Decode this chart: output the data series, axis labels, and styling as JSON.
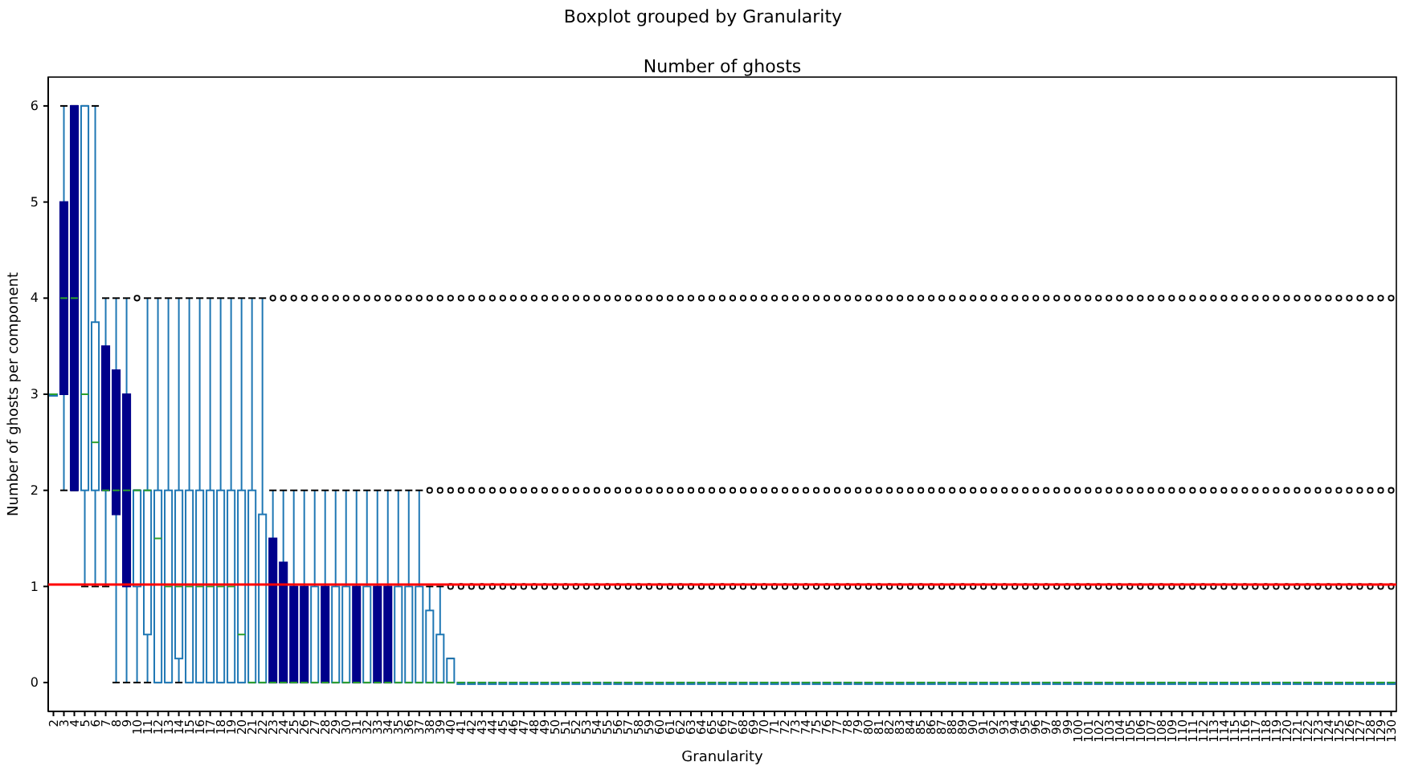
{
  "chart_data": {
    "type": "box",
    "title": "Boxplot grouped by Granularity",
    "subtitle": "Number of ghosts",
    "xlabel": "Granularity",
    "ylabel": "Number of ghosts per component",
    "categories": [
      "2",
      "3",
      "4",
      "5",
      "6",
      "7",
      "8",
      "9",
      "10",
      "11",
      "12",
      "13",
      "14",
      "15",
      "16",
      "17",
      "18",
      "19",
      "20",
      "21",
      "22",
      "23",
      "24",
      "25",
      "26",
      "27",
      "28",
      "29",
      "30",
      "31",
      "32",
      "33",
      "34",
      "35",
      "36",
      "37",
      "38",
      "39",
      "40",
      "41",
      "42",
      "43",
      "44",
      "45",
      "46",
      "47",
      "48",
      "49",
      "50",
      "51",
      "52",
      "53",
      "54",
      "55",
      "56",
      "57",
      "58",
      "59",
      "60",
      "61",
      "62",
      "63",
      "64",
      "65",
      "66",
      "67",
      "68",
      "69",
      "70",
      "71",
      "72",
      "73",
      "74",
      "75",
      "76",
      "77",
      "78",
      "79",
      "80",
      "81",
      "82",
      "83",
      "84",
      "85",
      "86",
      "87",
      "88",
      "89",
      "90",
      "91",
      "92",
      "93",
      "94",
      "95",
      "96",
      "97",
      "98",
      "99",
      "100",
      "101",
      "102",
      "103",
      "104",
      "105",
      "106",
      "107",
      "108",
      "109",
      "110",
      "111",
      "112",
      "113",
      "114",
      "115",
      "116",
      "117",
      "118",
      "119",
      "120",
      "121",
      "122",
      "123",
      "124",
      "125",
      "126",
      "127",
      "128",
      "129",
      "130"
    ],
    "colors": [
      "#ffffff",
      "#00008b",
      "#00008b",
      "#ffffff",
      "#ffffff",
      "#00008b",
      "#00008b",
      "#00008b",
      "#ffffff",
      "#ffffff",
      "#ffffff",
      "#ffffff",
      "#ffffff",
      "#ffffff",
      "#ffffff",
      "#ffffff",
      "#ffffff",
      "#ffffff",
      "#ffffff",
      "#ffffff",
      "#ffffff",
      "#00008b",
      "#00008b",
      "#00008b",
      "#00008b",
      "#ffffff",
      "#00008b",
      "#ffffff",
      "#ffffff",
      "#00008b",
      "#ffffff",
      "#00008b",
      "#00008b",
      "#ffffff",
      "#ffffff",
      "#ffffff",
      "#ffffff",
      "#ffffff",
      "#ffffff",
      "#ffffff",
      "#ffffff",
      "#ffffff",
      "#ffffff",
      "#ffffff",
      "#ffffff",
      "#ffffff",
      "#ffffff",
      "#ffffff",
      "#ffffff",
      "#ffffff",
      "#ffffff",
      "#ffffff",
      "#ffffff",
      "#ffffff",
      "#ffffff",
      "#ffffff",
      "#ffffff",
      "#ffffff",
      "#ffffff",
      "#ffffff",
      "#ffffff",
      "#ffffff",
      "#ffffff",
      "#ffffff",
      "#ffffff",
      "#ffffff",
      "#ffffff",
      "#ffffff",
      "#ffffff",
      "#ffffff",
      "#ffffff",
      "#ffffff",
      "#ffffff",
      "#ffffff",
      "#ffffff",
      "#ffffff",
      "#ffffff",
      "#ffffff",
      "#ffffff",
      "#ffffff",
      "#ffffff",
      "#ffffff",
      "#ffffff",
      "#ffffff",
      "#ffffff",
      "#ffffff",
      "#ffffff",
      "#ffffff",
      "#ffffff",
      "#ffffff",
      "#ffffff",
      "#ffffff",
      "#ffffff",
      "#ffffff",
      "#ffffff",
      "#ffffff",
      "#ffffff",
      "#ffffff",
      "#ffffff",
      "#ffffff",
      "#ffffff",
      "#ffffff",
      "#ffffff",
      "#ffffff",
      "#ffffff",
      "#ffffff",
      "#ffffff",
      "#ffffff",
      "#ffffff",
      "#ffffff",
      "#ffffff",
      "#ffffff",
      "#ffffff",
      "#ffffff",
      "#ffffff",
      "#ffffff",
      "#ffffff",
      "#ffffff",
      "#ffffff",
      "#ffffff",
      "#ffffff",
      "#ffffff",
      "#ffffff",
      "#ffffff",
      "#ffffff",
      "#ffffff",
      "#ffffff",
      "#ffffff",
      "#ffffff"
    ],
    "boxes": [
      {
        "low": 3,
        "q1": 3,
        "median": 3,
        "q3": 3,
        "high": 3
      },
      {
        "low": 2,
        "q1": 3,
        "median": 4,
        "q3": 5,
        "high": 6
      },
      {
        "low": 2,
        "q1": 2,
        "median": 4,
        "q3": 6,
        "high": 6
      },
      {
        "low": 1,
        "q1": 2,
        "median": 3,
        "q3": 6,
        "high": 6
      },
      {
        "low": 1,
        "q1": 2,
        "median": 2.5,
        "q3": 3.75,
        "high": 6
      },
      {
        "low": 1,
        "q1": 2,
        "median": 2,
        "q3": 3.5,
        "high": 4
      },
      {
        "low": 0,
        "q1": 1.75,
        "median": 2,
        "q3": 3.25,
        "high": 4
      },
      {
        "low": 0,
        "q1": 1,
        "median": 2,
        "q3": 3,
        "high": 4
      },
      {
        "low": 0,
        "q1": 1,
        "median": 2,
        "q3": 2,
        "high": 2,
        "outliers": [
          4
        ]
      },
      {
        "low": 0,
        "q1": 0.5,
        "median": 2,
        "q3": 2,
        "high": 4
      },
      {
        "low": 0,
        "q1": 0,
        "median": 1.5,
        "q3": 2,
        "high": 4
      },
      {
        "low": 0,
        "q1": 0,
        "median": 1,
        "q3": 2,
        "high": 4
      },
      {
        "low": 0,
        "q1": 0.25,
        "median": 1,
        "q3": 2,
        "high": 4
      },
      {
        "low": 0,
        "q1": 0,
        "median": 1,
        "q3": 2,
        "high": 4
      },
      {
        "low": 0,
        "q1": 0,
        "median": 1,
        "q3": 2,
        "high": 4
      },
      {
        "low": 0,
        "q1": 0,
        "median": 1,
        "q3": 2,
        "high": 4
      },
      {
        "low": 0,
        "q1": 0,
        "median": 1,
        "q3": 2,
        "high": 4
      },
      {
        "low": 0,
        "q1": 0,
        "median": 1,
        "q3": 2,
        "high": 4
      },
      {
        "low": 0,
        "q1": 0,
        "median": 0.5,
        "q3": 2,
        "high": 4
      },
      {
        "low": 0,
        "q1": 0,
        "median": 0,
        "q3": 2,
        "high": 4
      },
      {
        "low": 0,
        "q1": 0,
        "median": 0,
        "q3": 1.75,
        "high": 4
      },
      {
        "low": 0,
        "q1": 0,
        "median": 0,
        "q3": 1.5,
        "high": 2,
        "outliers": [
          4
        ]
      },
      {
        "low": 0,
        "q1": 0,
        "median": 0,
        "q3": 1.25,
        "high": 2,
        "outliers": [
          4
        ]
      },
      {
        "low": 0,
        "q1": 0,
        "median": 0,
        "q3": 1,
        "high": 2,
        "outliers": [
          4
        ]
      },
      {
        "low": 0,
        "q1": 0,
        "median": 0,
        "q3": 1,
        "high": 2,
        "outliers": [
          4
        ]
      },
      {
        "low": 0,
        "q1": 0,
        "median": 0,
        "q3": 1,
        "high": 2,
        "outliers": [
          4
        ]
      },
      {
        "low": 0,
        "q1": 0,
        "median": 0,
        "q3": 1,
        "high": 2,
        "outliers": [
          4
        ]
      },
      {
        "low": 0,
        "q1": 0,
        "median": 0,
        "q3": 1,
        "high": 2,
        "outliers": [
          4
        ]
      },
      {
        "low": 0,
        "q1": 0,
        "median": 0,
        "q3": 1,
        "high": 2,
        "outliers": [
          4
        ]
      },
      {
        "low": 0,
        "q1": 0,
        "median": 0,
        "q3": 1,
        "high": 2,
        "outliers": [
          4
        ]
      },
      {
        "low": 0,
        "q1": 0,
        "median": 0,
        "q3": 1,
        "high": 2,
        "outliers": [
          4
        ]
      },
      {
        "low": 0,
        "q1": 0,
        "median": 0,
        "q3": 1,
        "high": 2,
        "outliers": [
          4
        ]
      },
      {
        "low": 0,
        "q1": 0,
        "median": 0,
        "q3": 1,
        "high": 2,
        "outliers": [
          4
        ]
      },
      {
        "low": 0,
        "q1": 0,
        "median": 0,
        "q3": 1,
        "high": 2,
        "outliers": [
          4
        ]
      },
      {
        "low": 0,
        "q1": 0,
        "median": 0,
        "q3": 1,
        "high": 2,
        "outliers": [
          4
        ]
      },
      {
        "low": 0,
        "q1": 0,
        "median": 0,
        "q3": 1,
        "high": 2,
        "outliers": [
          4
        ]
      },
      {
        "low": 0,
        "q1": 0,
        "median": 0,
        "q3": 0.75,
        "high": 1,
        "outliers": [
          2,
          4
        ]
      },
      {
        "low": 0,
        "q1": 0,
        "median": 0,
        "q3": 0.5,
        "high": 1,
        "outliers": [
          2,
          4
        ]
      },
      {
        "low": 0,
        "q1": 0,
        "median": 0,
        "q3": 0.25,
        "high": 0.25,
        "outliers": [
          1,
          2,
          4
        ]
      },
      {
        "low": 0,
        "q1": 0,
        "median": 0,
        "q3": 0,
        "high": 0,
        "outliers": [
          1,
          2,
          4
        ]
      },
      {
        "low": 0,
        "q1": 0,
        "median": 0,
        "q3": 0,
        "high": 0,
        "outliers": [
          1,
          2,
          4
        ]
      },
      {
        "low": 0,
        "q1": 0,
        "median": 0,
        "q3": 0,
        "high": 0,
        "outliers": [
          1,
          2,
          4
        ]
      },
      {
        "low": 0,
        "q1": 0,
        "median": 0,
        "q3": 0,
        "high": 0,
        "outliers": [
          1,
          2,
          4
        ]
      },
      {
        "low": 0,
        "q1": 0,
        "median": 0,
        "q3": 0,
        "high": 0,
        "outliers": [
          1,
          2,
          4
        ]
      },
      {
        "low": 0,
        "q1": 0,
        "median": 0,
        "q3": 0,
        "high": 0,
        "outliers": [
          1,
          2,
          4
        ]
      },
      {
        "low": 0,
        "q1": 0,
        "median": 0,
        "q3": 0,
        "high": 0,
        "outliers": [
          1,
          2,
          4
        ]
      },
      {
        "low": 0,
        "q1": 0,
        "median": 0,
        "q3": 0,
        "high": 0,
        "outliers": [
          1,
          2,
          4
        ]
      },
      {
        "low": 0,
        "q1": 0,
        "median": 0,
        "q3": 0,
        "high": 0,
        "outliers": [
          1,
          2,
          4
        ]
      },
      {
        "low": 0,
        "q1": 0,
        "median": 0,
        "q3": 0,
        "high": 0,
        "outliers": [
          1,
          2,
          4
        ]
      },
      {
        "low": 0,
        "q1": 0,
        "median": 0,
        "q3": 0,
        "high": 0,
        "outliers": [
          1,
          2,
          4
        ]
      },
      {
        "low": 0,
        "q1": 0,
        "median": 0,
        "q3": 0,
        "high": 0,
        "outliers": [
          1,
          2,
          4
        ]
      },
      {
        "low": 0,
        "q1": 0,
        "median": 0,
        "q3": 0,
        "high": 0,
        "outliers": [
          1,
          2,
          4
        ]
      },
      {
        "low": 0,
        "q1": 0,
        "median": 0,
        "q3": 0,
        "high": 0,
        "outliers": [
          1,
          2,
          4
        ]
      },
      {
        "low": 0,
        "q1": 0,
        "median": 0,
        "q3": 0,
        "high": 0,
        "outliers": [
          1,
          2,
          4
        ]
      },
      {
        "low": 0,
        "q1": 0,
        "median": 0,
        "q3": 0,
        "high": 0,
        "outliers": [
          1,
          2,
          4
        ]
      },
      {
        "low": 0,
        "q1": 0,
        "median": 0,
        "q3": 0,
        "high": 0,
        "outliers": [
          1,
          2,
          4
        ]
      },
      {
        "low": 0,
        "q1": 0,
        "median": 0,
        "q3": 0,
        "high": 0,
        "outliers": [
          1,
          2,
          4
        ]
      },
      {
        "low": 0,
        "q1": 0,
        "median": 0,
        "q3": 0,
        "high": 0,
        "outliers": [
          1,
          2,
          4
        ]
      },
      {
        "low": 0,
        "q1": 0,
        "median": 0,
        "q3": 0,
        "high": 0,
        "outliers": [
          1,
          2,
          4
        ]
      },
      {
        "low": 0,
        "q1": 0,
        "median": 0,
        "q3": 0,
        "high": 0,
        "outliers": [
          1,
          2,
          4
        ]
      },
      {
        "low": 0,
        "q1": 0,
        "median": 0,
        "q3": 0,
        "high": 0,
        "outliers": [
          1,
          2,
          4
        ]
      },
      {
        "low": 0,
        "q1": 0,
        "median": 0,
        "q3": 0,
        "high": 0,
        "outliers": [
          1,
          2,
          4
        ]
      },
      {
        "low": 0,
        "q1": 0,
        "median": 0,
        "q3": 0,
        "high": 0,
        "outliers": [
          1,
          2,
          4
        ]
      },
      {
        "low": 0,
        "q1": 0,
        "median": 0,
        "q3": 0,
        "high": 0,
        "outliers": [
          1,
          2,
          4
        ]
      },
      {
        "low": 0,
        "q1": 0,
        "median": 0,
        "q3": 0,
        "high": 0,
        "outliers": [
          1,
          2,
          4
        ]
      },
      {
        "low": 0,
        "q1": 0,
        "median": 0,
        "q3": 0,
        "high": 0,
        "outliers": [
          1,
          2,
          4
        ]
      },
      {
        "low": 0,
        "q1": 0,
        "median": 0,
        "q3": 0,
        "high": 0,
        "outliers": [
          1,
          2,
          4
        ]
      },
      {
        "low": 0,
        "q1": 0,
        "median": 0,
        "q3": 0,
        "high": 0,
        "outliers": [
          1,
          2,
          4
        ]
      },
      {
        "low": 0,
        "q1": 0,
        "median": 0,
        "q3": 0,
        "high": 0,
        "outliers": [
          1,
          2,
          4
        ]
      },
      {
        "low": 0,
        "q1": 0,
        "median": 0,
        "q3": 0,
        "high": 0,
        "outliers": [
          1,
          2,
          4
        ]
      },
      {
        "low": 0,
        "q1": 0,
        "median": 0,
        "q3": 0,
        "high": 0,
        "outliers": [
          1,
          2,
          4
        ]
      },
      {
        "low": 0,
        "q1": 0,
        "median": 0,
        "q3": 0,
        "high": 0,
        "outliers": [
          1,
          2,
          4
        ]
      },
      {
        "low": 0,
        "q1": 0,
        "median": 0,
        "q3": 0,
        "high": 0,
        "outliers": [
          1,
          2,
          4
        ]
      },
      {
        "low": 0,
        "q1": 0,
        "median": 0,
        "q3": 0,
        "high": 0,
        "outliers": [
          1,
          2,
          4
        ]
      },
      {
        "low": 0,
        "q1": 0,
        "median": 0,
        "q3": 0,
        "high": 0,
        "outliers": [
          1,
          2,
          4
        ]
      },
      {
        "low": 0,
        "q1": 0,
        "median": 0,
        "q3": 0,
        "high": 0,
        "outliers": [
          1,
          2,
          4
        ]
      },
      {
        "low": 0,
        "q1": 0,
        "median": 0,
        "q3": 0,
        "high": 0,
        "outliers": [
          1,
          2,
          4
        ]
      },
      {
        "low": 0,
        "q1": 0,
        "median": 0,
        "q3": 0,
        "high": 0,
        "outliers": [
          1,
          2,
          4
        ]
      },
      {
        "low": 0,
        "q1": 0,
        "median": 0,
        "q3": 0,
        "high": 0,
        "outliers": [
          1,
          2,
          4
        ]
      },
      {
        "low": 0,
        "q1": 0,
        "median": 0,
        "q3": 0,
        "high": 0,
        "outliers": [
          1,
          2,
          4
        ]
      },
      {
        "low": 0,
        "q1": 0,
        "median": 0,
        "q3": 0,
        "high": 0,
        "outliers": [
          1,
          2,
          4
        ]
      },
      {
        "low": 0,
        "q1": 0,
        "median": 0,
        "q3": 0,
        "high": 0,
        "outliers": [
          1,
          2,
          4
        ]
      },
      {
        "low": 0,
        "q1": 0,
        "median": 0,
        "q3": 0,
        "high": 0,
        "outliers": [
          1,
          2,
          4
        ]
      },
      {
        "low": 0,
        "q1": 0,
        "median": 0,
        "q3": 0,
        "high": 0,
        "outliers": [
          1,
          2,
          4
        ]
      },
      {
        "low": 0,
        "q1": 0,
        "median": 0,
        "q3": 0,
        "high": 0,
        "outliers": [
          1,
          2,
          4
        ]
      },
      {
        "low": 0,
        "q1": 0,
        "median": 0,
        "q3": 0,
        "high": 0,
        "outliers": [
          1,
          2,
          4
        ]
      },
      {
        "low": 0,
        "q1": 0,
        "median": 0,
        "q3": 0,
        "high": 0,
        "outliers": [
          1,
          2,
          4
        ]
      },
      {
        "low": 0,
        "q1": 0,
        "median": 0,
        "q3": 0,
        "high": 0,
        "outliers": [
          1,
          2,
          4
        ]
      },
      {
        "low": 0,
        "q1": 0,
        "median": 0,
        "q3": 0,
        "high": 0,
        "outliers": [
          1,
          2,
          4
        ]
      },
      {
        "low": 0,
        "q1": 0,
        "median": 0,
        "q3": 0,
        "high": 0,
        "outliers": [
          1,
          2,
          4
        ]
      },
      {
        "low": 0,
        "q1": 0,
        "median": 0,
        "q3": 0,
        "high": 0,
        "outliers": [
          1,
          2,
          4
        ]
      },
      {
        "low": 0,
        "q1": 0,
        "median": 0,
        "q3": 0,
        "high": 0,
        "outliers": [
          1,
          2,
          4
        ]
      },
      {
        "low": 0,
        "q1": 0,
        "median": 0,
        "q3": 0,
        "high": 0,
        "outliers": [
          1,
          2,
          4
        ]
      },
      {
        "low": 0,
        "q1": 0,
        "median": 0,
        "q3": 0,
        "high": 0,
        "outliers": [
          1,
          2,
          4
        ]
      },
      {
        "low": 0,
        "q1": 0,
        "median": 0,
        "q3": 0,
        "high": 0,
        "outliers": [
          1,
          2,
          4
        ]
      },
      {
        "low": 0,
        "q1": 0,
        "median": 0,
        "q3": 0,
        "high": 0,
        "outliers": [
          1,
          2,
          4
        ]
      },
      {
        "low": 0,
        "q1": 0,
        "median": 0,
        "q3": 0,
        "high": 0,
        "outliers": [
          1,
          2,
          4
        ]
      },
      {
        "low": 0,
        "q1": 0,
        "median": 0,
        "q3": 0,
        "high": 0,
        "outliers": [
          1,
          2,
          4
        ]
      },
      {
        "low": 0,
        "q1": 0,
        "median": 0,
        "q3": 0,
        "high": 0,
        "outliers": [
          1,
          2,
          4
        ]
      },
      {
        "low": 0,
        "q1": 0,
        "median": 0,
        "q3": 0,
        "high": 0,
        "outliers": [
          1,
          2,
          4
        ]
      },
      {
        "low": 0,
        "q1": 0,
        "median": 0,
        "q3": 0,
        "high": 0,
        "outliers": [
          1,
          2,
          4
        ]
      },
      {
        "low": 0,
        "q1": 0,
        "median": 0,
        "q3": 0,
        "high": 0,
        "outliers": [
          1,
          2,
          4
        ]
      },
      {
        "low": 0,
        "q1": 0,
        "median": 0,
        "q3": 0,
        "high": 0,
        "outliers": [
          1,
          2,
          4
        ]
      },
      {
        "low": 0,
        "q1": 0,
        "median": 0,
        "q3": 0,
        "high": 0,
        "outliers": [
          1,
          2,
          4
        ]
      },
      {
        "low": 0,
        "q1": 0,
        "median": 0,
        "q3": 0,
        "high": 0,
        "outliers": [
          1,
          2,
          4
        ]
      },
      {
        "low": 0,
        "q1": 0,
        "median": 0,
        "q3": 0,
        "high": 0,
        "outliers": [
          1,
          2,
          4
        ]
      },
      {
        "low": 0,
        "q1": 0,
        "median": 0,
        "q3": 0,
        "high": 0,
        "outliers": [
          1,
          2,
          4
        ]
      },
      {
        "low": 0,
        "q1": 0,
        "median": 0,
        "q3": 0,
        "high": 0,
        "outliers": [
          1,
          2,
          4
        ]
      },
      {
        "low": 0,
        "q1": 0,
        "median": 0,
        "q3": 0,
        "high": 0,
        "outliers": [
          1,
          2,
          4
        ]
      },
      {
        "low": 0,
        "q1": 0,
        "median": 0,
        "q3": 0,
        "high": 0,
        "outliers": [
          1,
          2,
          4
        ]
      },
      {
        "low": 0,
        "q1": 0,
        "median": 0,
        "q3": 0,
        "high": 0,
        "outliers": [
          1,
          2,
          4
        ]
      },
      {
        "low": 0,
        "q1": 0,
        "median": 0,
        "q3": 0,
        "high": 0,
        "outliers": [
          1,
          2,
          4
        ]
      },
      {
        "low": 0,
        "q1": 0,
        "median": 0,
        "q3": 0,
        "high": 0,
        "outliers": [
          1,
          2,
          4
        ]
      },
      {
        "low": 0,
        "q1": 0,
        "median": 0,
        "q3": 0,
        "high": 0,
        "outliers": [
          1,
          2,
          4
        ]
      },
      {
        "low": 0,
        "q1": 0,
        "median": 0,
        "q3": 0,
        "high": 0,
        "outliers": [
          1,
          2,
          4
        ]
      },
      {
        "low": 0,
        "q1": 0,
        "median": 0,
        "q3": 0,
        "high": 0,
        "outliers": [
          1,
          2,
          4
        ]
      },
      {
        "low": 0,
        "q1": 0,
        "median": 0,
        "q3": 0,
        "high": 0,
        "outliers": [
          1,
          2,
          4
        ]
      },
      {
        "low": 0,
        "q1": 0,
        "median": 0,
        "q3": 0,
        "high": 0,
        "outliers": [
          1,
          2,
          4
        ]
      },
      {
        "low": 0,
        "q1": 0,
        "median": 0,
        "q3": 0,
        "high": 0,
        "outliers": [
          1,
          2,
          4
        ]
      },
      {
        "low": 0,
        "q1": 0,
        "median": 0,
        "q3": 0,
        "high": 0,
        "outliers": [
          1,
          2,
          4
        ]
      },
      {
        "low": 0,
        "q1": 0,
        "median": 0,
        "q3": 0,
        "high": 0,
        "outliers": [
          1,
          2,
          4
        ]
      },
      {
        "low": 0,
        "q1": 0,
        "median": 0,
        "q3": 0,
        "high": 0,
        "outliers": [
          1,
          2,
          4
        ]
      },
      {
        "low": 0,
        "q1": 0,
        "median": 0,
        "q3": 0,
        "high": 0,
        "outliers": [
          1,
          2,
          4
        ]
      },
      {
        "low": 0,
        "q1": 0,
        "median": 0,
        "q3": 0,
        "high": 0,
        "outliers": [
          1,
          2,
          4
        ]
      },
      {
        "low": 0,
        "q1": 0,
        "median": 0,
        "q3": 0,
        "high": 0,
        "outliers": [
          1,
          2,
          4
        ]
      },
      {
        "low": 0,
        "q1": 0,
        "median": 0,
        "q3": 0,
        "high": 0,
        "outliers": [
          1,
          2,
          4
        ]
      },
      {
        "low": 0,
        "q1": 0,
        "median": 0,
        "q3": 0,
        "high": 0,
        "outliers": [
          1,
          2,
          4
        ]
      },
      {
        "low": 0,
        "q1": 0,
        "median": 0,
        "q3": 0,
        "high": 0,
        "outliers": [
          1,
          2,
          4
        ]
      },
      {
        "low": 0,
        "q1": 0,
        "median": 0,
        "q3": 0,
        "high": 0,
        "outliers": [
          1,
          2,
          4
        ]
      }
    ],
    "ylim": [
      -0.3,
      6.3
    ],
    "yticks": [
      0,
      1,
      2,
      3,
      4,
      5,
      6
    ],
    "ref_lines": [
      {
        "axis": "y",
        "value": 1.02,
        "color": "#ff0000"
      }
    ]
  }
}
